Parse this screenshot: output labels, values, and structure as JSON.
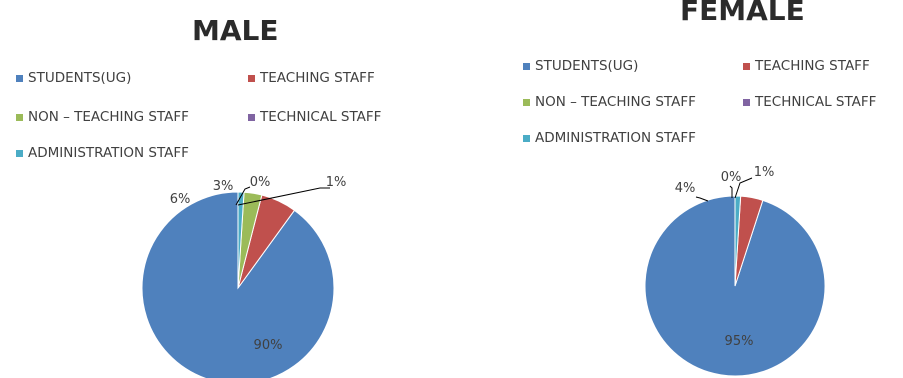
{
  "chart_data": [
    {
      "type": "pie",
      "title": "MALE",
      "categories": [
        "STUDENTS(UG)",
        "TEACHING  STAFF",
        "NON – TEACHING STAFF",
        "TECHNICAL STAFF",
        "ADMINISTRATION  STAFF"
      ],
      "values": [
        90,
        6,
        3,
        0,
        1
      ],
      "data_labels": [
        "90%",
        "6%",
        "3%",
        "0%",
        "1%"
      ],
      "colors": [
        "#4f81bd",
        "#c0504d",
        "#9bbb59",
        "#8064a2",
        "#4bacc6"
      ],
      "legend": "top"
    },
    {
      "type": "pie",
      "title": "FEMALE",
      "categories": [
        "STUDENTS(UG)",
        "TEACHING  STAFF",
        "NON – TEACHING STAFF",
        "TECHNICAL STAFF",
        "ADMINISTRATION  STAFF"
      ],
      "values": [
        95,
        4,
        0,
        0,
        1
      ],
      "data_labels": [
        "95%",
        "4%",
        "",
        "0%",
        "1%"
      ],
      "colors": [
        "#4f81bd",
        "#c0504d",
        "#9bbb59",
        "#8064a2",
        "#4bacc6"
      ],
      "legend": "top"
    }
  ]
}
